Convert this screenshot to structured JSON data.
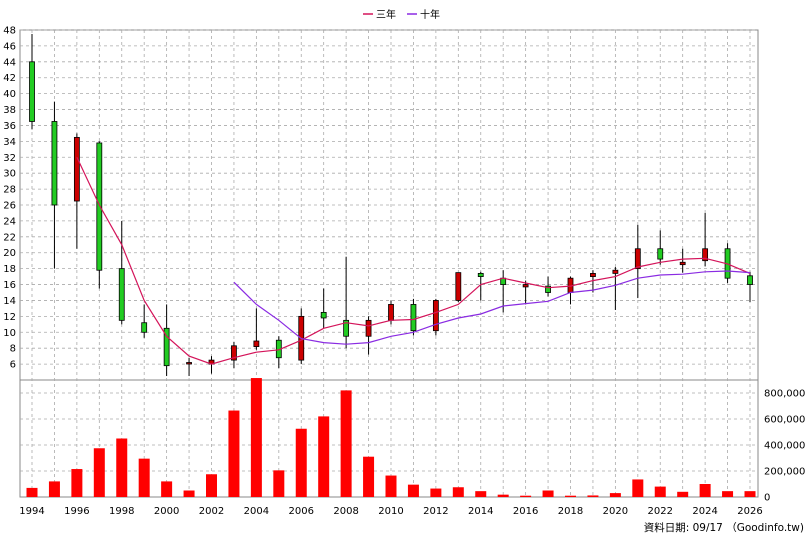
{
  "legend": {
    "items": [
      {
        "label": "三年",
        "color": "#d4145a"
      },
      {
        "label": "十年",
        "color": "#8a2be2"
      }
    ]
  },
  "footer": {
    "text": "資料日期: 09/17 （Goodinfo.tw)"
  },
  "chart_data": {
    "type": "candlestick+bar",
    "price_axis": {
      "min": 4,
      "max": 48,
      "ticks": [
        6,
        8,
        10,
        12,
        14,
        16,
        18,
        20,
        22,
        24,
        26,
        28,
        30,
        32,
        34,
        36,
        38,
        40,
        42,
        44,
        46,
        48
      ],
      "side": "left"
    },
    "volume_axis": {
      "min": 0,
      "max": 900000,
      "ticks": [
        0,
        200000,
        400000,
        600000,
        800000
      ],
      "tick_labels": [
        "0",
        "200,000",
        "400,000",
        "600,000",
        "800,000"
      ],
      "side": "right"
    },
    "x_axis": {
      "min": 1994,
      "max": 2026,
      "tick_labels": [
        "1994",
        "1996",
        "1998",
        "2000",
        "2002",
        "2004",
        "2006",
        "2008",
        "2010",
        "2012",
        "2014",
        "2016",
        "2018",
        "2020",
        "2022",
        "2024",
        "2026"
      ]
    },
    "grid": true,
    "candles": [
      {
        "year": 1994,
        "open": 36.5,
        "high": 47.5,
        "low": 35.5,
        "close": 44,
        "color": "green"
      },
      {
        "year": 1995,
        "open": 36.5,
        "high": 39,
        "low": 18,
        "close": 26,
        "color": "green"
      },
      {
        "year": 1996,
        "open": 26.5,
        "high": 35,
        "low": 20.5,
        "close": 34.5,
        "color": "red"
      },
      {
        "year": 1997,
        "open": 33.8,
        "high": 34,
        "low": 15.5,
        "close": 17.8,
        "color": "green"
      },
      {
        "year": 1998,
        "open": 18,
        "high": 24,
        "low": 11,
        "close": 11.5,
        "color": "green"
      },
      {
        "year": 1999,
        "open": 11.2,
        "high": 13.5,
        "low": 9.3,
        "close": 10,
        "color": "green"
      },
      {
        "year": 2000,
        "open": 10.5,
        "high": 13.5,
        "low": 4.5,
        "close": 5.8,
        "color": "green"
      },
      {
        "year": 2001,
        "open": 6.2,
        "high": 6.8,
        "low": 4.5,
        "close": 6.2,
        "color": "red"
      },
      {
        "year": 2002,
        "open": 6,
        "high": 7,
        "low": 4.8,
        "close": 6.5,
        "color": "red"
      },
      {
        "year": 2003,
        "open": 6.5,
        "high": 8.8,
        "low": 5.5,
        "close": 8.3,
        "color": "red"
      },
      {
        "year": 2004,
        "open": 8.2,
        "high": 13,
        "low": 7.8,
        "close": 8.9,
        "color": "red"
      },
      {
        "year": 2005,
        "open": 9,
        "high": 9.5,
        "low": 5.5,
        "close": 6.8,
        "color": "green"
      },
      {
        "year": 2006,
        "open": 6.5,
        "high": 13,
        "low": 6,
        "close": 12,
        "color": "red"
      },
      {
        "year": 2007,
        "open": 12.5,
        "high": 15.5,
        "low": 10.5,
        "close": 11.8,
        "color": "green"
      },
      {
        "year": 2008,
        "open": 11.5,
        "high": 19.5,
        "low": 8,
        "close": 9.5,
        "color": "green"
      },
      {
        "year": 2009,
        "open": 9.5,
        "high": 12,
        "low": 7.2,
        "close": 11.5,
        "color": "red"
      },
      {
        "year": 2010,
        "open": 11.5,
        "high": 14,
        "low": 11,
        "close": 13.5,
        "color": "red"
      },
      {
        "year": 2011,
        "open": 13.5,
        "high": 14.2,
        "low": 9.6,
        "close": 10.2,
        "color": "green"
      },
      {
        "year": 2012,
        "open": 10.2,
        "high": 14.2,
        "low": 9.6,
        "close": 14,
        "color": "red"
      },
      {
        "year": 2013,
        "open": 14,
        "high": 17.5,
        "low": 13.8,
        "close": 17.5,
        "color": "red"
      },
      {
        "year": 2014,
        "open": 17.4,
        "high": 17.6,
        "low": 14,
        "close": 17,
        "color": "green"
      },
      {
        "year": 2015,
        "open": 16.8,
        "high": 17.8,
        "low": 12.5,
        "close": 16,
        "color": "green"
      },
      {
        "year": 2016,
        "open": 16,
        "high": 16.5,
        "low": 13.5,
        "close": 15.7,
        "color": "red"
      },
      {
        "year": 2017,
        "open": 15.8,
        "high": 17,
        "low": 14.5,
        "close": 15,
        "color": "green"
      },
      {
        "year": 2018,
        "open": 15,
        "high": 17,
        "low": 13.5,
        "close": 16.8,
        "color": "red"
      },
      {
        "year": 2019,
        "open": 17,
        "high": 17.8,
        "low": 15,
        "close": 17.4,
        "color": "red"
      },
      {
        "year": 2020,
        "open": 17.4,
        "high": 18.2,
        "low": 12.8,
        "close": 17.8,
        "color": "red"
      },
      {
        "year": 2021,
        "open": 18,
        "high": 23.5,
        "low": 14.3,
        "close": 20.5,
        "color": "red"
      },
      {
        "year": 2022,
        "open": 20.5,
        "high": 22.8,
        "low": 18.5,
        "close": 19.2,
        "color": "green"
      },
      {
        "year": 2023,
        "open": 18.5,
        "high": 20.5,
        "low": 17.5,
        "close": 18.8,
        "color": "red"
      },
      {
        "year": 2024,
        "open": 19,
        "high": 25,
        "low": 18.3,
        "close": 20.5,
        "color": "red"
      },
      {
        "year": 2025,
        "open": 20.5,
        "high": 21.2,
        "low": 16.2,
        "close": 16.8,
        "color": "green"
      },
      {
        "year": 2026,
        "open": 17.1,
        "high": 17.6,
        "low": 13.8,
        "close": 16,
        "color": "green"
      }
    ],
    "volume": [
      {
        "year": 1994,
        "value": 70000
      },
      {
        "year": 1995,
        "value": 120000
      },
      {
        "year": 1996,
        "value": 215000
      },
      {
        "year": 1997,
        "value": 375000
      },
      {
        "year": 1998,
        "value": 450000
      },
      {
        "year": 1999,
        "value": 295000
      },
      {
        "year": 2000,
        "value": 120000
      },
      {
        "year": 2001,
        "value": 50000
      },
      {
        "year": 2002,
        "value": 175000
      },
      {
        "year": 2003,
        "value": 665000
      },
      {
        "year": 2004,
        "value": 915000
      },
      {
        "year": 2005,
        "value": 205000
      },
      {
        "year": 2006,
        "value": 525000
      },
      {
        "year": 2007,
        "value": 620000
      },
      {
        "year": 2008,
        "value": 820000
      },
      {
        "year": 2009,
        "value": 310000
      },
      {
        "year": 2010,
        "value": 165000
      },
      {
        "year": 2011,
        "value": 95000
      },
      {
        "year": 2012,
        "value": 65000
      },
      {
        "year": 2013,
        "value": 75000
      },
      {
        "year": 2014,
        "value": 45000
      },
      {
        "year": 2015,
        "value": 18000
      },
      {
        "year": 2016,
        "value": 10000
      },
      {
        "year": 2017,
        "value": 50000
      },
      {
        "year": 2018,
        "value": 10000
      },
      {
        "year": 2019,
        "value": 12000
      },
      {
        "year": 2020,
        "value": 30000
      },
      {
        "year": 2021,
        "value": 135000
      },
      {
        "year": 2022,
        "value": 80000
      },
      {
        "year": 2023,
        "value": 40000
      },
      {
        "year": 2024,
        "value": 100000
      },
      {
        "year": 2025,
        "value": 45000
      },
      {
        "year": 2026,
        "value": 45000
      }
    ],
    "series": [
      {
        "name": "三年",
        "color": "#d4145a",
        "points": [
          [
            1996,
            32
          ],
          [
            1997,
            26
          ],
          [
            1998,
            21
          ],
          [
            1999,
            14
          ],
          [
            2000,
            9.5
          ],
          [
            2001,
            7
          ],
          [
            2002,
            6
          ],
          [
            2003,
            6.8
          ],
          [
            2004,
            7.5
          ],
          [
            2005,
            7.8
          ],
          [
            2006,
            9
          ],
          [
            2007,
            10.5
          ],
          [
            2008,
            11.2
          ],
          [
            2009,
            10.8
          ],
          [
            2010,
            11.5
          ],
          [
            2011,
            11.6
          ],
          [
            2012,
            12.5
          ],
          [
            2013,
            13.5
          ],
          [
            2014,
            16
          ],
          [
            2015,
            16.8
          ],
          [
            2016,
            16.2
          ],
          [
            2017,
            15.6
          ],
          [
            2018,
            15.8
          ],
          [
            2019,
            16.5
          ],
          [
            2020,
            17
          ],
          [
            2021,
            18.2
          ],
          [
            2022,
            18.8
          ],
          [
            2023,
            19.2
          ],
          [
            2024,
            19.3
          ],
          [
            2025,
            18.6
          ],
          [
            2026,
            17.4
          ]
        ]
      },
      {
        "name": "十年",
        "color": "#8a2be2",
        "points": [
          [
            2003,
            16.3
          ],
          [
            2004,
            13.5
          ],
          [
            2005,
            11.5
          ],
          [
            2006,
            9.2
          ],
          [
            2007,
            8.7
          ],
          [
            2008,
            8.5
          ],
          [
            2009,
            8.7
          ],
          [
            2010,
            9.5
          ],
          [
            2011,
            10
          ],
          [
            2012,
            11
          ],
          [
            2013,
            11.8
          ],
          [
            2014,
            12.3
          ],
          [
            2015,
            13.3
          ],
          [
            2016,
            13.6
          ],
          [
            2017,
            13.9
          ],
          [
            2018,
            15
          ],
          [
            2019,
            15.3
          ],
          [
            2020,
            15.9
          ],
          [
            2021,
            16.8
          ],
          [
            2022,
            17.2
          ],
          [
            2023,
            17.3
          ],
          [
            2024,
            17.6
          ],
          [
            2025,
            17.7
          ],
          [
            2026,
            17.5
          ]
        ]
      }
    ]
  }
}
